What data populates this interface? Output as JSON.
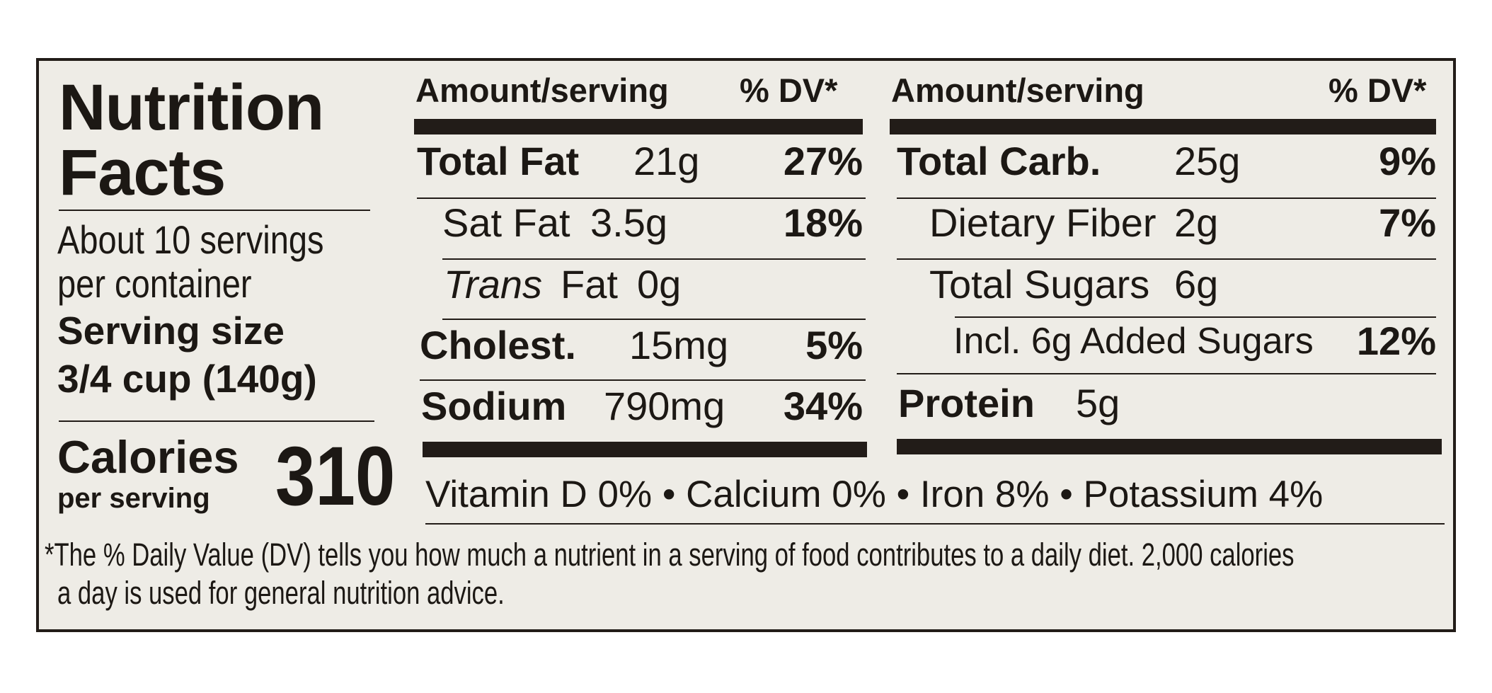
{
  "title_line1": "Nutrition",
  "title_line2": "Facts",
  "servings_line1": "About 10 servings",
  "servings_line2": "per container",
  "serving_size_label": "Serving size",
  "serving_size_value": "3/4 cup (140g)",
  "calories_label": "Calories",
  "calories_sub": "per serving",
  "calories_value": "310",
  "header_amount": "Amount/serving",
  "header_dv": "% DV*",
  "left_nutrients": {
    "total_fat": {
      "name": "Total Fat",
      "amount": "21g",
      "dv": "27%"
    },
    "sat_fat": {
      "name": "Sat Fat",
      "amount": "3.5g",
      "dv": "18%"
    },
    "trans_fat": {
      "name_italic": "Trans",
      "name": "Fat",
      "amount": "0g"
    },
    "cholest": {
      "name": "Cholest.",
      "amount": "15mg",
      "dv": "5%"
    },
    "sodium": {
      "name": "Sodium",
      "amount": "790mg",
      "dv": "34%"
    }
  },
  "right_nutrients": {
    "total_carb": {
      "name": "Total Carb.",
      "amount": "25g",
      "dv": "9%"
    },
    "fiber": {
      "name": "Dietary Fiber",
      "amount": "2g",
      "dv": "7%"
    },
    "sugars": {
      "name": "Total Sugars",
      "amount": "6g"
    },
    "added_sugars": {
      "text": "Incl. 6g Added Sugars",
      "dv": "12%"
    },
    "protein": {
      "name": "Protein",
      "amount": "5g"
    }
  },
  "vitamins_line": "Vitamin D 0% • Calcium 0% • Iron 8% • Potassium 4%",
  "footnote_line1": "*The % Daily Value (DV) tells you how much a nutrient in a serving of food contributes to a daily diet. 2,000 calories",
  "footnote_line2": "a day is used for general nutrition advice."
}
